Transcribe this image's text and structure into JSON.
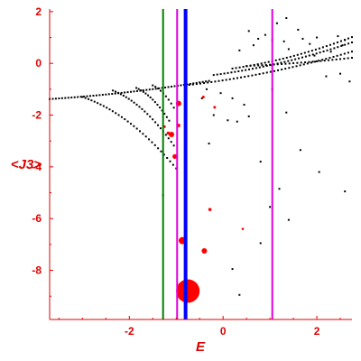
{
  "chart_data": {
    "type": "scatter",
    "title": "",
    "xlabel": "E",
    "ylabel": "<J3>",
    "xlim": [
      -3.7,
      2.75
    ],
    "ylim": [
      -9.9,
      2.1
    ],
    "xticks": [
      -2,
      0,
      2
    ],
    "yticks": [
      2,
      0,
      -2,
      -4,
      -6,
      -8
    ],
    "grid": false,
    "colors": {
      "axes": "#e00000",
      "tick_labels": "#e00000",
      "black_points": "#000000",
      "red_markers": "#ff0000",
      "green_line": "#008000",
      "blue_line": "#0000ff",
      "magenta_line": "#e000e0"
    },
    "vertical_lines": [
      {
        "x": -1.28,
        "color": "#008000",
        "style": "thin"
      },
      {
        "x": -0.98,
        "color": "#e000e0",
        "style": "thin"
      },
      {
        "x": -0.8,
        "color": "#0000ff",
        "style": "thick"
      },
      {
        "x": 1.05,
        "color": "#e000e0",
        "style": "thin"
      }
    ],
    "curves": [
      {
        "x0": -3.7,
        "y0": -1.38,
        "x1": -0.3,
        "y1": -0.6,
        "n": 52
      },
      {
        "x0": -3.0,
        "y0": -1.3,
        "x1": -1.0,
        "y1": -3.7,
        "n": 32
      },
      {
        "x0": -2.35,
        "y0": -1.05,
        "x1": -1.05,
        "y1": -2.9,
        "n": 24
      },
      {
        "x0": -1.85,
        "y0": -0.95,
        "x1": -1.15,
        "y1": -2.05,
        "n": 15
      },
      {
        "x0": -1.5,
        "y0": -0.85,
        "x1": -1.05,
        "y1": -1.6,
        "n": 9
      },
      {
        "x0": -0.8,
        "y0": -0.85,
        "x1": 2.75,
        "y1": 0.6,
        "n": 46
      },
      {
        "x0": -0.2,
        "y0": -0.45,
        "x1": 2.75,
        "y1": 0.95,
        "n": 40
      },
      {
        "x0": 0.2,
        "y0": -0.2,
        "x1": 2.75,
        "y1": 1.15,
        "n": 34
      },
      {
        "x0": 0.5,
        "y0": -0.1,
        "x1": 2.75,
        "y1": 0.25,
        "n": 28
      }
    ],
    "scattered_points": [
      [
        0.55,
        1.25
      ],
      [
        0.9,
        1.1
      ],
      [
        1.15,
        1.55
      ],
      [
        1.35,
        1.75
      ],
      [
        1.6,
        1.3
      ],
      [
        0.75,
        0.95
      ],
      [
        1.05,
        0.9
      ],
      [
        0.35,
        0.5
      ],
      [
        0.65,
        0.7
      ],
      [
        1.3,
        0.85
      ],
      [
        1.85,
        0.75
      ],
      [
        2.0,
        1.0
      ],
      [
        2.45,
        1.05
      ],
      [
        2.6,
        0.9
      ],
      [
        1.7,
        0.95
      ],
      [
        2.2,
        -0.5
      ],
      [
        2.5,
        -0.4
      ],
      [
        2.7,
        -0.7
      ],
      [
        2.55,
        0.7
      ],
      [
        1.95,
        0.3
      ],
      [
        2.3,
        0.45
      ],
      [
        1.4,
        0.55
      ],
      [
        -0.35,
        -1.0
      ],
      [
        -0.05,
        -1.15
      ],
      [
        0.2,
        -1.35
      ],
      [
        0.45,
        -1.6
      ],
      [
        -0.45,
        -1.35
      ],
      [
        0.1,
        -2.2
      ],
      [
        0.3,
        -2.25
      ],
      [
        0.55,
        -2.05
      ],
      [
        -0.2,
        -2.0
      ],
      [
        1.05,
        -1.0
      ],
      [
        1.35,
        -1.9
      ],
      [
        1.65,
        -3.35
      ],
      [
        2.05,
        -4.2
      ],
      [
        2.6,
        -4.95
      ],
      [
        0.8,
        -3.8
      ],
      [
        1.2,
        -4.85
      ],
      [
        1.0,
        -5.55
      ],
      [
        1.4,
        -6.05
      ],
      [
        0.8,
        -6.95
      ],
      [
        0.2,
        -7.95
      ],
      [
        0.35,
        -8.95
      ],
      [
        -0.3,
        -3.1
      ],
      [
        -1.28,
        -5.1
      ]
    ],
    "red_markers": [
      {
        "x": -0.75,
        "y": -8.8,
        "size": 13
      },
      {
        "x": -0.87,
        "y": -6.85,
        "size": 4
      },
      {
        "x": -0.4,
        "y": -7.25,
        "size": 3
      },
      {
        "x": -0.28,
        "y": -5.65,
        "size": 1.8
      },
      {
        "x": -0.95,
        "y": -1.55,
        "size": 3
      },
      {
        "x": -1.1,
        "y": -2.75,
        "size": 3
      },
      {
        "x": -1.03,
        "y": -3.6,
        "size": 2.6
      },
      {
        "x": -0.95,
        "y": -2.4,
        "size": 2
      },
      {
        "x": -1.25,
        "y": -2.45,
        "size": 1.5
      },
      {
        "x": -1.17,
        "y": -2.7,
        "size": 1.8
      },
      {
        "x": -0.42,
        "y": -1.3,
        "size": 1.5
      },
      {
        "x": -0.18,
        "y": -1.7,
        "size": 1.5
      },
      {
        "x": 0.42,
        "y": -6.4,
        "size": 1.3
      }
    ]
  }
}
